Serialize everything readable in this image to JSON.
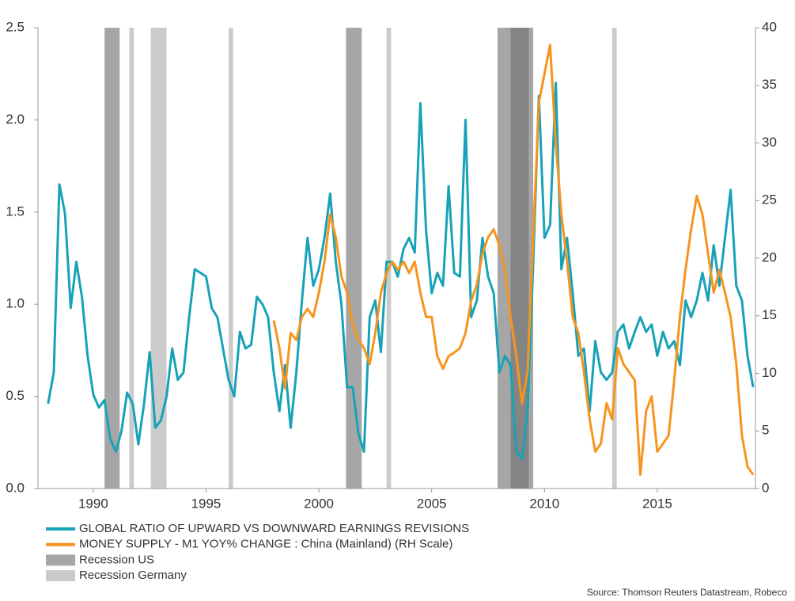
{
  "chart_data": {
    "type": "line",
    "source": "Source: Thomson Reuters Datastream, Robeco",
    "x": [
      1988,
      1988.25,
      1988.5,
      1988.75,
      1989,
      1989.25,
      1989.5,
      1989.75,
      1990,
      1990.25,
      1990.5,
      1990.75,
      1991,
      1991.25,
      1991.5,
      1991.75,
      1992,
      1992.25,
      1992.5,
      1992.75,
      1993,
      1993.25,
      1993.5,
      1993.75,
      1994,
      1994.25,
      1994.5,
      1994.75,
      1995,
      1995.25,
      1995.5,
      1995.75,
      1996,
      1996.25,
      1996.5,
      1996.75,
      1997,
      1997.25,
      1997.5,
      1997.75,
      1998,
      1998.25,
      1998.5,
      1998.75,
      1999,
      1999.25,
      1999.5,
      1999.75,
      2000,
      2000.25,
      2000.5,
      2000.75,
      2001,
      2001.25,
      2001.5,
      2001.75,
      2002,
      2002.25,
      2002.5,
      2002.75,
      2003,
      2003.25,
      2003.5,
      2003.75,
      2004,
      2004.25,
      2004.5,
      2004.75,
      2005,
      2005.25,
      2005.5,
      2005.75,
      2006,
      2006.25,
      2006.5,
      2006.75,
      2007,
      2007.25,
      2007.5,
      2007.75,
      2008,
      2008.25,
      2008.5,
      2008.75,
      2009,
      2009.25,
      2009.5,
      2009.75,
      2010,
      2010.25,
      2010.5,
      2010.75,
      2011,
      2011.25,
      2011.5,
      2011.75,
      2012,
      2012.25,
      2012.5,
      2012.75,
      2013,
      2013.25,
      2013.5,
      2013.75,
      2014,
      2014.25,
      2014.5,
      2014.75,
      2015,
      2015.25,
      2015.5,
      2015.75,
      2016,
      2016.25,
      2016.5,
      2016.75,
      2017,
      2017.25,
      2017.5,
      2017.75,
      2018,
      2018.25,
      2018.5,
      2018.75,
      2019,
      2019.25
    ],
    "series": [
      {
        "name": "GLOBAL RATIO OF UPWARD VS DOWNWARD EARNINGS REVISIONS",
        "color": "#17a2b8",
        "values": [
          0.46,
          0.63,
          1.65,
          1.49,
          0.98,
          1.23,
          1.04,
          0.72,
          0.51,
          0.44,
          0.48,
          0.27,
          0.2,
          0.31,
          0.52,
          0.46,
          0.24,
          0.46,
          0.74,
          0.33,
          0.37,
          0.5,
          0.76,
          0.59,
          0.63,
          0.93,
          1.19,
          1.17,
          1.15,
          0.98,
          0.93,
          0.76,
          0.59,
          0.5,
          0.85,
          0.76,
          0.78,
          1.04,
          1.0,
          0.93,
          0.63,
          0.42,
          0.67,
          0.33,
          0.63,
          1.02,
          1.36,
          1.1,
          1.19,
          1.36,
          1.6,
          1.23,
          1.0,
          0.55,
          0.55,
          0.3,
          0.2,
          0.93,
          1.02,
          0.74,
          1.23,
          1.23,
          1.15,
          1.3,
          1.36,
          1.28,
          2.09,
          1.4,
          1.06,
          1.17,
          1.1,
          1.64,
          1.17,
          1.15,
          2.0,
          0.93,
          1.02,
          1.36,
          1.15,
          1.06,
          0.63,
          0.72,
          0.67,
          0.2,
          0.16,
          0.42,
          1.23,
          2.13,
          1.36,
          1.43,
          2.2,
          1.19,
          1.36,
          1.06,
          0.72,
          0.76,
          0.42,
          0.8,
          0.63,
          0.59,
          0.63,
          0.85,
          0.89,
          0.76,
          0.85,
          0.93,
          0.85,
          0.89,
          0.72,
          0.85,
          0.76,
          0.8,
          0.67,
          1.02,
          0.93,
          1.02,
          1.17,
          1.02,
          1.32,
          1.1,
          1.36,
          1.62,
          1.1,
          1.02,
          0.72,
          0.55
        ]
      },
      {
        "name": "MONEY SUPPLY - M1 YOY% CHANGE : China (Mainland) (RH Scale)",
        "color": "#f7941d",
        "axis": "y2",
        "values": [
          null,
          null,
          null,
          null,
          null,
          null,
          null,
          null,
          null,
          null,
          null,
          null,
          null,
          null,
          null,
          null,
          null,
          null,
          null,
          null,
          null,
          null,
          null,
          null,
          null,
          null,
          null,
          null,
          null,
          null,
          null,
          null,
          null,
          null,
          null,
          null,
          null,
          null,
          null,
          null,
          14.6,
          12.2,
          8.7,
          13.5,
          12.9,
          14.9,
          15.6,
          14.9,
          17.0,
          19.7,
          23.8,
          21.8,
          18.4,
          17.0,
          14.2,
          12.9,
          12.2,
          10.8,
          13.5,
          17.0,
          18.7,
          19.7,
          19.0,
          19.7,
          18.7,
          19.7,
          17.0,
          14.9,
          14.9,
          11.5,
          10.4,
          11.5,
          11.8,
          12.2,
          13.5,
          16.3,
          17.7,
          20.4,
          21.8,
          22.5,
          21.1,
          19.0,
          14.9,
          11.5,
          7.4,
          10.1,
          21.8,
          33.5,
          36.0,
          38.5,
          30.0,
          23.8,
          19.7,
          14.9,
          13.5,
          10.1,
          6.0,
          3.2,
          3.9,
          7.4,
          6.0,
          12.2,
          10.8,
          10.1,
          9.4,
          1.2,
          6.7,
          8.0,
          3.2,
          3.9,
          4.6,
          9.4,
          14.9,
          19.0,
          22.5,
          25.4,
          23.8,
          20.4,
          17.0,
          19.0,
          17.0,
          14.9,
          10.8,
          4.6,
          1.9,
          1.2
        ]
      }
    ],
    "bands": [
      {
        "name": "Recession US",
        "color": "#a6a6a6",
        "periods": [
          [
            1990.5,
            1991.17
          ],
          [
            2001.2,
            2001.9
          ],
          [
            2007.92,
            2009.5
          ]
        ]
      },
      {
        "name": "Recession Germany",
        "color": "#cbcbcb",
        "periods": [
          [
            1991.6,
            1991.8
          ],
          [
            1992.55,
            1993.25
          ],
          [
            1996.0,
            1996.2
          ],
          [
            2003.0,
            2003.2
          ],
          [
            2008.5,
            2009.3
          ],
          [
            2013.0,
            2013.2
          ]
        ]
      }
    ],
    "xlim": [
      1987.55,
      2019.35
    ],
    "xticks": [
      1990,
      1995,
      2000,
      2005,
      2010,
      2015
    ],
    "ylim": [
      0,
      2.5
    ],
    "yticks": [
      {
        "value": 0,
        "label": "0.0"
      },
      0.5,
      {
        "value": 1,
        "label": "1.0"
      },
      1.5,
      {
        "value": 2,
        "label": "2.0"
      },
      2.5
    ],
    "y2lim": [
      0,
      40
    ],
    "y2ticks": [
      0,
      5,
      10,
      15,
      20,
      25,
      30,
      35,
      40
    ]
  }
}
